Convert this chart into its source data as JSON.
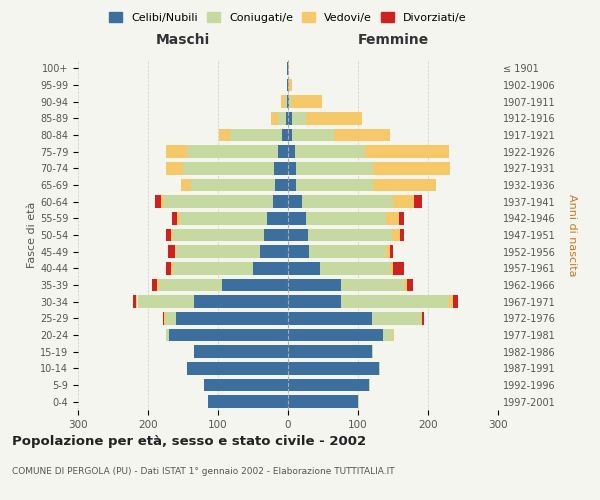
{
  "age_groups": [
    "0-4",
    "5-9",
    "10-14",
    "15-19",
    "20-24",
    "25-29",
    "30-34",
    "35-39",
    "40-44",
    "45-49",
    "50-54",
    "55-59",
    "60-64",
    "65-69",
    "70-74",
    "75-79",
    "80-84",
    "85-89",
    "90-94",
    "95-99",
    "100+"
  ],
  "birth_years": [
    "1997-2001",
    "1992-1996",
    "1987-1991",
    "1982-1986",
    "1977-1981",
    "1972-1976",
    "1967-1971",
    "1962-1966",
    "1957-1961",
    "1952-1956",
    "1947-1951",
    "1942-1946",
    "1937-1941",
    "1932-1936",
    "1927-1931",
    "1922-1926",
    "1917-1921",
    "1912-1916",
    "1907-1911",
    "1902-1906",
    "≤ 1901"
  ],
  "maschi": {
    "celibi": [
      115,
      120,
      145,
      135,
      170,
      160,
      135,
      95,
      50,
      40,
      35,
      30,
      22,
      18,
      20,
      15,
      8,
      3,
      2,
      1,
      1
    ],
    "coniugati": [
      0,
      0,
      0,
      0,
      5,
      15,
      80,
      90,
      115,
      120,
      130,
      125,
      155,
      120,
      130,
      130,
      75,
      12,
      3,
      0,
      0
    ],
    "vedovi": [
      0,
      0,
      0,
      0,
      0,
      2,
      2,
      2,
      2,
      2,
      2,
      3,
      5,
      15,
      25,
      30,
      15,
      10,
      5,
      1,
      0
    ],
    "divorziati": [
      0,
      0,
      0,
      0,
      0,
      2,
      5,
      8,
      8,
      10,
      8,
      8,
      8,
      0,
      0,
      0,
      0,
      0,
      0,
      0,
      0
    ]
  },
  "femmine": {
    "nubili": [
      100,
      115,
      130,
      120,
      135,
      120,
      75,
      75,
      45,
      30,
      28,
      25,
      20,
      12,
      12,
      10,
      5,
      5,
      2,
      0,
      0
    ],
    "coniugate": [
      2,
      2,
      2,
      2,
      15,
      70,
      155,
      90,
      100,
      110,
      120,
      115,
      130,
      110,
      110,
      100,
      60,
      20,
      2,
      0,
      0
    ],
    "vedove": [
      0,
      0,
      0,
      0,
      2,
      2,
      5,
      5,
      5,
      5,
      12,
      18,
      30,
      90,
      110,
      120,
      80,
      80,
      45,
      5,
      1
    ],
    "divorziate": [
      0,
      0,
      0,
      0,
      0,
      2,
      8,
      8,
      15,
      5,
      5,
      8,
      12,
      0,
      0,
      0,
      0,
      0,
      0,
      0,
      0
    ]
  },
  "colors": {
    "celibi": "#3c6e9e",
    "coniugati": "#c5d9a0",
    "vedovi": "#f5c96a",
    "divorziati": "#cc2222"
  },
  "xlim": 300,
  "title": "Popolazione per età, sesso e stato civile - 2002",
  "subtitle": "COMUNE DI PERGOLA (PU) - Dati ISTAT 1° gennaio 2002 - Elaborazione TUTTITALIA.IT",
  "ylabel_left": "Fasce di età",
  "ylabel_right": "Anni di nascita",
  "xlabel_maschi": "Maschi",
  "xlabel_femmine": "Femmine",
  "legend_labels": [
    "Celibi/Nubili",
    "Coniugati/e",
    "Vedovi/e",
    "Divorziati/e"
  ],
  "background_color": "#f5f5f0",
  "grid_color": "#cccccc"
}
